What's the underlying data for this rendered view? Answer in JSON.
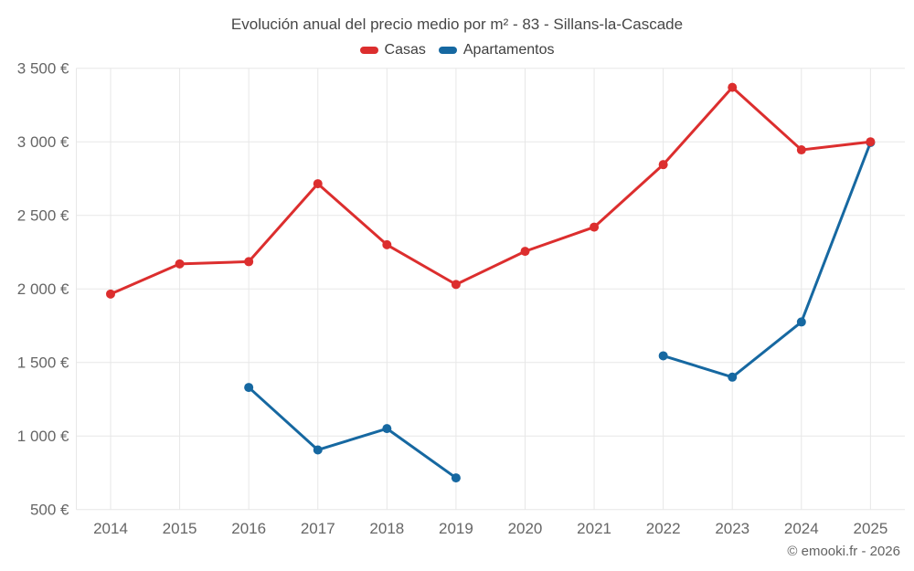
{
  "header": {
    "title": "Evolución anual del precio medio por m² - 83 - Sillans-la-Cascade"
  },
  "legend": {
    "items": [
      {
        "label": "Casas",
        "color": "#dc2e2e"
      },
      {
        "label": "Apartamentos",
        "color": "#1668a1"
      }
    ]
  },
  "footer": {
    "copyright": "© emooki.fr - 2026"
  },
  "chart_data": {
    "type": "line",
    "title": "Evolución anual del precio medio por m² - 83 - Sillans-la-Cascade",
    "categories": [
      "2014",
      "2015",
      "2016",
      "2017",
      "2018",
      "2019",
      "2020",
      "2021",
      "2022",
      "2023",
      "2024",
      "2025"
    ],
    "series": [
      {
        "name": "Casas",
        "color": "#dc2e2e",
        "values": [
          1965,
          2170,
          2185,
          2715,
          2300,
          2030,
          2255,
          2420,
          2845,
          3370,
          2945,
          3000
        ]
      },
      {
        "name": "Apartamentos",
        "color": "#1668a1",
        "values": [
          null,
          null,
          1330,
          905,
          1050,
          715,
          null,
          null,
          1545,
          1400,
          1775,
          2995
        ]
      }
    ],
    "xlabel": "",
    "ylabel": "",
    "ylim": [
      500,
      3500
    ],
    "yticks": [
      500,
      1000,
      1500,
      2000,
      2500,
      3000,
      3500
    ],
    "ytick_labels": [
      "500 €",
      "1 000 €",
      "1 500 €",
      "2 000 €",
      "2 500 €",
      "3 000 €",
      "3 500 €"
    ],
    "grid": true,
    "legend_position": "top",
    "currency": "€"
  },
  "style": {
    "gridline_color": "#e7e7e7",
    "axis_label_color": "#666666",
    "title_color": "#474747",
    "background": "#ffffff"
  }
}
